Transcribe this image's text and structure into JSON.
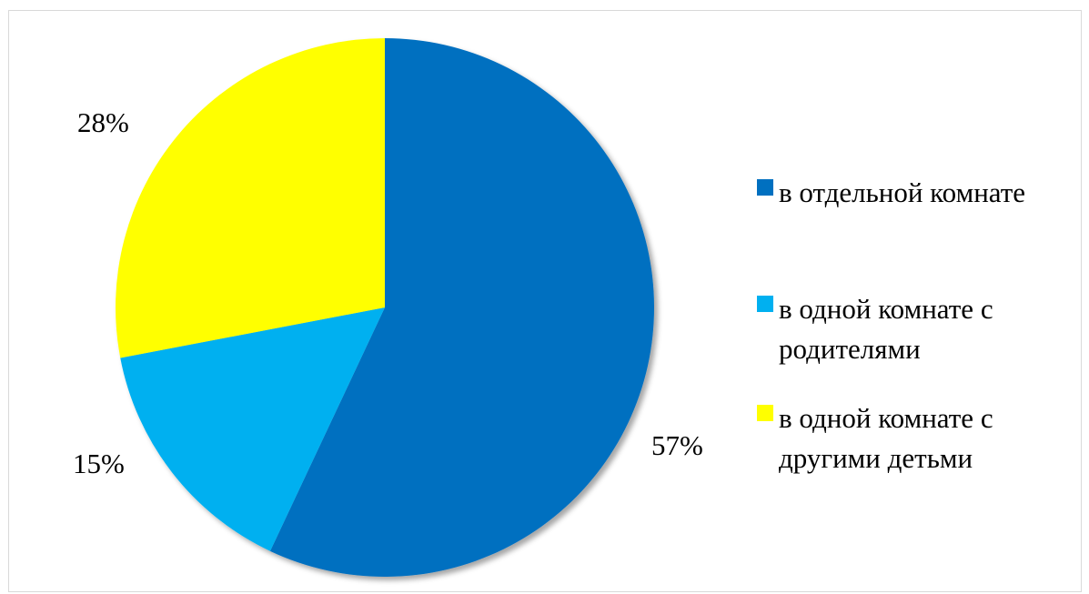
{
  "chart_data": {
    "type": "pie",
    "categories": [
      "в отдельной комнате",
      "в одной комнате с родителями",
      "в одной комнате с другими детьми"
    ],
    "values": [
      57,
      15,
      28
    ],
    "value_labels": [
      "57%",
      "15%",
      "28%"
    ],
    "colors": [
      "#0070C0",
      "#00B0F0",
      "#FFFF00"
    ],
    "legend_position": "right",
    "title": ""
  },
  "legend": {
    "items": [
      {
        "label_line1": "в отдельной комнате",
        "label_line2": "",
        "color": "#0070C0"
      },
      {
        "label_line1": "в одной комнате с",
        "label_line2": "родителями",
        "color": "#00B0F0"
      },
      {
        "label_line1": "в одной комнате с",
        "label_line2": "другими детьми",
        "color": "#FFFF00"
      }
    ]
  }
}
